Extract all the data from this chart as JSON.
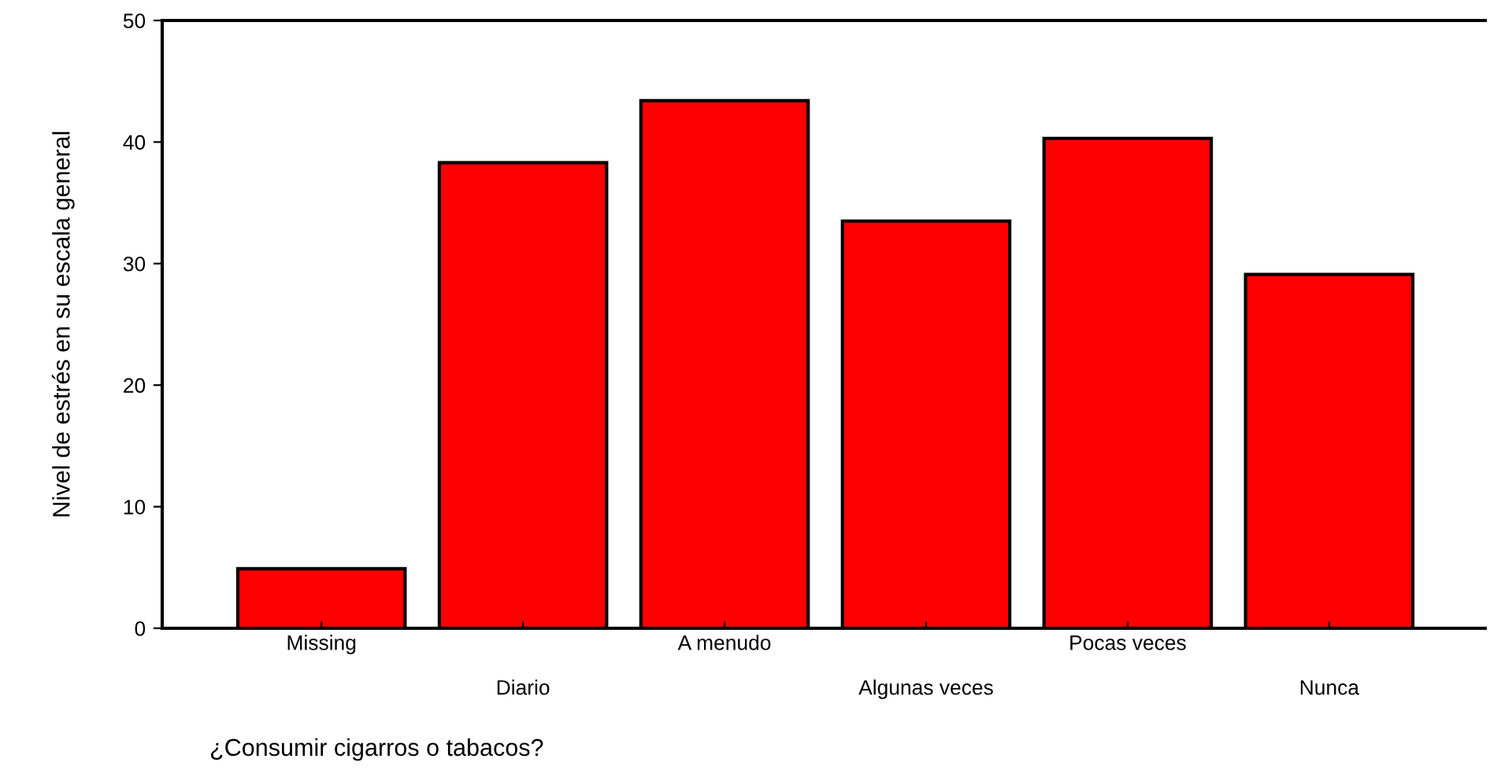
{
  "chart_data": {
    "type": "bar",
    "xlabel": "¿Consumir cigarros o tabacos?",
    "ylabel": "Nivel de estrés en su escala general",
    "categories": [
      "Missing",
      "Diario",
      "A menudo",
      "Algunas veces",
      "Pocas veces",
      "Nunca"
    ],
    "values": [
      4.9,
      38.3,
      43.4,
      33.5,
      40.3,
      29.1
    ],
    "color": "#ff0000",
    "ylim": [
      0,
      50
    ],
    "yticks": [
      0,
      10,
      20,
      30,
      40,
      50
    ],
    "grid": false
  }
}
